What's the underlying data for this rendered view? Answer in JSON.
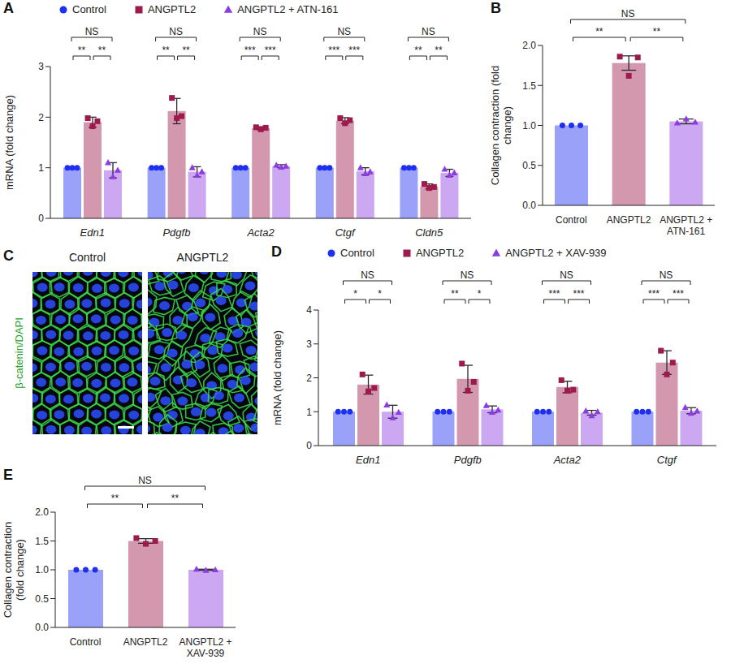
{
  "chart_data": [
    {
      "panel": "A",
      "type": "bar",
      "y_label": "mRNA (fold change)",
      "legend": "top",
      "categories": [
        "Edn1",
        "Pdgfb",
        "Acta2",
        "Ctgf",
        "Cldn5"
      ],
      "ylim": [
        0,
        3
      ],
      "yticks": [
        0,
        1,
        2,
        3
      ],
      "series": [
        {
          "name": "Control",
          "color": "#1f2ff0",
          "marker": "circle",
          "values": [
            1,
            1,
            1,
            1,
            1
          ],
          "errors": [
            0,
            0,
            0,
            0,
            0
          ],
          "points": [
            [
              1,
              1,
              1
            ],
            [
              1,
              1,
              1
            ],
            [
              1,
              1,
              1
            ],
            [
              1,
              1,
              1
            ],
            [
              1,
              1,
              1
            ]
          ]
        },
        {
          "name": "ANGPTL2",
          "color": "#9e1a4c",
          "marker": "square",
          "values": [
            1.9,
            2.12,
            1.78,
            1.93,
            0.63
          ],
          "errors": [
            0.1,
            0.25,
            0.03,
            0.06,
            0.05
          ],
          "points": [
            [
              1.98,
              1.82,
              1.92
            ],
            [
              2.38,
              1.98,
              2.02
            ],
            [
              1.8,
              1.76,
              1.79
            ],
            [
              1.98,
              1.88,
              1.94
            ],
            [
              0.68,
              0.6,
              0.62
            ]
          ]
        },
        {
          "name": "ANGPTL2 + ATN-161",
          "color": "#8d3be2",
          "marker": "triangle",
          "values": [
            0.95,
            0.92,
            1.03,
            0.93,
            0.9
          ],
          "errors": [
            0.15,
            0.1,
            0.03,
            0.07,
            0.07
          ],
          "points": [
            [
              1.1,
              0.82,
              0.95
            ],
            [
              1.0,
              0.85,
              0.92
            ],
            [
              1.05,
              1.01,
              1.03
            ],
            [
              1.0,
              0.88,
              0.92
            ],
            [
              0.97,
              0.85,
              0.9
            ]
          ]
        }
      ],
      "comparisons": [
        {
          "category": "Edn1",
          "between": [
            "Control",
            "ANGPTL2"
          ],
          "label": "**"
        },
        {
          "category": "Edn1",
          "between": [
            "ANGPTL2",
            "ANGPTL2 + ATN-161"
          ],
          "label": "**"
        },
        {
          "category": "Edn1",
          "between": [
            "Control",
            "ANGPTL2 + ATN-161"
          ],
          "label": "NS"
        },
        {
          "category": "Pdgfb",
          "between": [
            "Control",
            "ANGPTL2"
          ],
          "label": "**"
        },
        {
          "category": "Pdgfb",
          "between": [
            "ANGPTL2",
            "ANGPTL2 + ATN-161"
          ],
          "label": "**"
        },
        {
          "category": "Pdgfb",
          "between": [
            "Control",
            "ANGPTL2 + ATN-161"
          ],
          "label": "NS"
        },
        {
          "category": "Acta2",
          "between": [
            "Control",
            "ANGPTL2"
          ],
          "label": "***"
        },
        {
          "category": "Acta2",
          "between": [
            "ANGPTL2",
            "ANGPTL2 + ATN-161"
          ],
          "label": "***"
        },
        {
          "category": "Acta2",
          "between": [
            "Control",
            "ANGPTL2 + ATN-161"
          ],
          "label": "NS"
        },
        {
          "category": "Ctgf",
          "between": [
            "Control",
            "ANGPTL2"
          ],
          "label": "***"
        },
        {
          "category": "Ctgf",
          "between": [
            "ANGPTL2",
            "ANGPTL2 + ATN-161"
          ],
          "label": "***"
        },
        {
          "category": "Ctgf",
          "between": [
            "Control",
            "ANGPTL2 + ATN-161"
          ],
          "label": "NS"
        },
        {
          "category": "Cldn5",
          "between": [
            "Control",
            "ANGPTL2"
          ],
          "label": "**"
        },
        {
          "category": "Cldn5",
          "between": [
            "ANGPTL2",
            "ANGPTL2 + ATN-161"
          ],
          "label": "**"
        },
        {
          "category": "Cldn5",
          "between": [
            "Control",
            "ANGPTL2 + ATN-161"
          ],
          "label": "NS"
        }
      ]
    },
    {
      "panel": "B",
      "type": "bar",
      "y_label": "Collagen contraction (fold change)",
      "categories": [
        "Control",
        "ANGPTL2",
        "ANGPTL2 + ATN-161"
      ],
      "values": [
        1,
        1.78,
        1.05
      ],
      "errors": [
        0,
        0.09,
        0.03
      ],
      "points": [
        [
          1,
          1,
          1
        ],
        [
          1.86,
          1.62,
          1.85
        ],
        [
          1.03,
          1.08,
          1.04
        ]
      ],
      "colors": [
        "#1f2ff0",
        "#9e1a4c",
        "#8d3be2"
      ],
      "ylim": [
        0,
        2
      ],
      "yticks": [
        {
          "value": 0,
          "label": "0.0"
        },
        {
          "value": 0.5,
          "label": "0.5"
        },
        {
          "value": 1,
          "label": "1.0"
        },
        {
          "value": 1.5,
          "label": "1.5"
        },
        {
          "value": 2,
          "label": "2.0"
        }
      ],
      "comparisons": [
        {
          "between": [
            "Control",
            "ANGPTL2"
          ],
          "label": "**"
        },
        {
          "between": [
            "ANGPTL2",
            "ANGPTL2 + ATN-161"
          ],
          "label": "**"
        },
        {
          "between": [
            "Control",
            "ANGPTL2 + ATN-161"
          ],
          "label": "NS"
        }
      ]
    },
    {
      "panel": "C",
      "type": "image",
      "images": [
        "Control",
        "ANGPTL2"
      ],
      "annotations": [
        "β-catenin/DAPI"
      ]
    },
    {
      "panel": "D",
      "type": "bar",
      "y_label": "mRNA (fold change)",
      "legend": "top",
      "categories": [
        "Edn1",
        "Pdgfb",
        "Acta2",
        "Ctgf"
      ],
      "ylim": [
        0,
        4
      ],
      "yticks": [
        0,
        1,
        2,
        3,
        4
      ],
      "series": [
        {
          "name": "Control",
          "color": "#1f2ff0",
          "marker": "circle",
          "values": [
            1,
            1,
            1,
            1
          ],
          "errors": [
            0,
            0,
            0,
            0
          ],
          "points": [
            [
              1,
              1,
              1
            ],
            [
              1,
              1,
              1
            ],
            [
              1,
              1,
              1
            ],
            [
              1,
              1,
              1
            ]
          ]
        },
        {
          "name": "ANGPTL2",
          "color": "#9e1a4c",
          "marker": "square",
          "values": [
            1.8,
            1.97,
            1.73,
            2.45
          ],
          "errors": [
            0.28,
            0.4,
            0.17,
            0.35
          ],
          "points": [
            [
              2.1,
              1.6,
              1.7
            ],
            [
              2.42,
              1.62,
              1.88
            ],
            [
              1.93,
              1.62,
              1.65
            ],
            [
              2.8,
              2.1,
              2.45
            ]
          ]
        },
        {
          "name": "ANGPTL2 + XAV-939",
          "color": "#8d3be2",
          "marker": "triangle",
          "values": [
            1.0,
            1.07,
            0.97,
            1.03
          ],
          "errors": [
            0.19,
            0.1,
            0.07,
            0.09
          ],
          "points": [
            [
              1.2,
              0.82,
              0.98
            ],
            [
              1.18,
              0.98,
              1.05
            ],
            [
              1.02,
              0.88,
              1.0
            ],
            [
              1.12,
              0.95,
              1.02
            ]
          ]
        }
      ],
      "comparisons": [
        {
          "category": "Edn1",
          "between": [
            "Control",
            "ANGPTL2"
          ],
          "label": "*"
        },
        {
          "category": "Edn1",
          "between": [
            "ANGPTL2",
            "ANGPTL2 + XAV-939"
          ],
          "label": "*"
        },
        {
          "category": "Edn1",
          "between": [
            "Control",
            "ANGPTL2 + XAV-939"
          ],
          "label": "NS"
        },
        {
          "category": "Pdgfb",
          "between": [
            "Control",
            "ANGPTL2"
          ],
          "label": "**"
        },
        {
          "category": "Pdgfb",
          "between": [
            "ANGPTL2",
            "ANGPTL2 + XAV-939"
          ],
          "label": "*"
        },
        {
          "category": "Pdgfb",
          "between": [
            "Control",
            "ANGPTL2 + XAV-939"
          ],
          "label": "NS"
        },
        {
          "category": "Acta2",
          "between": [
            "Control",
            "ANGPTL2"
          ],
          "label": "***"
        },
        {
          "category": "Acta2",
          "between": [
            "ANGPTL2",
            "ANGPTL2 + XAV-939"
          ],
          "label": "***"
        },
        {
          "category": "Acta2",
          "between": [
            "Control",
            "ANGPTL2 + XAV-939"
          ],
          "label": "NS"
        },
        {
          "category": "Ctgf",
          "between": [
            "Control",
            "ANGPTL2"
          ],
          "label": "***"
        },
        {
          "category": "Ctgf",
          "between": [
            "ANGPTL2",
            "ANGPTL2 + XAV-939"
          ],
          "label": "***"
        },
        {
          "category": "Ctgf",
          "between": [
            "Control",
            "ANGPTL2 + XAV-939"
          ],
          "label": "NS"
        }
      ]
    },
    {
      "panel": "E",
      "type": "bar",
      "y_label": "Collagen contraction (fold change)",
      "categories": [
        "Control",
        "ANGPTL2",
        "ANGPTL2 + XAV-939"
      ],
      "values": [
        1,
        1.5,
        1.0
      ],
      "errors": [
        0,
        0.04,
        0.01
      ],
      "points": [
        [
          1,
          1,
          1
        ],
        [
          1.55,
          1.45,
          1.5
        ],
        [
          1.01,
          0.99,
          1.0
        ]
      ],
      "colors": [
        "#1f2ff0",
        "#9e1a4c",
        "#8d3be2"
      ],
      "ylim": [
        0,
        2
      ],
      "yticks": [
        {
          "value": 0,
          "label": "0.0"
        },
        {
          "value": 0.5,
          "label": "0.5"
        },
        {
          "value": 1,
          "label": "1.0"
        },
        {
          "value": 1.5,
          "label": "1.5"
        },
        {
          "value": 2,
          "label": "2.0"
        }
      ],
      "comparisons": [
        {
          "between": [
            "Control",
            "ANGPTL2"
          ],
          "label": "**"
        },
        {
          "between": [
            "ANGPTL2",
            "ANGPTL2 + XAV-939"
          ],
          "label": "**"
        },
        {
          "between": [
            "Control",
            "ANGPTL2 + XAV-939"
          ],
          "label": "NS"
        }
      ]
    }
  ]
}
